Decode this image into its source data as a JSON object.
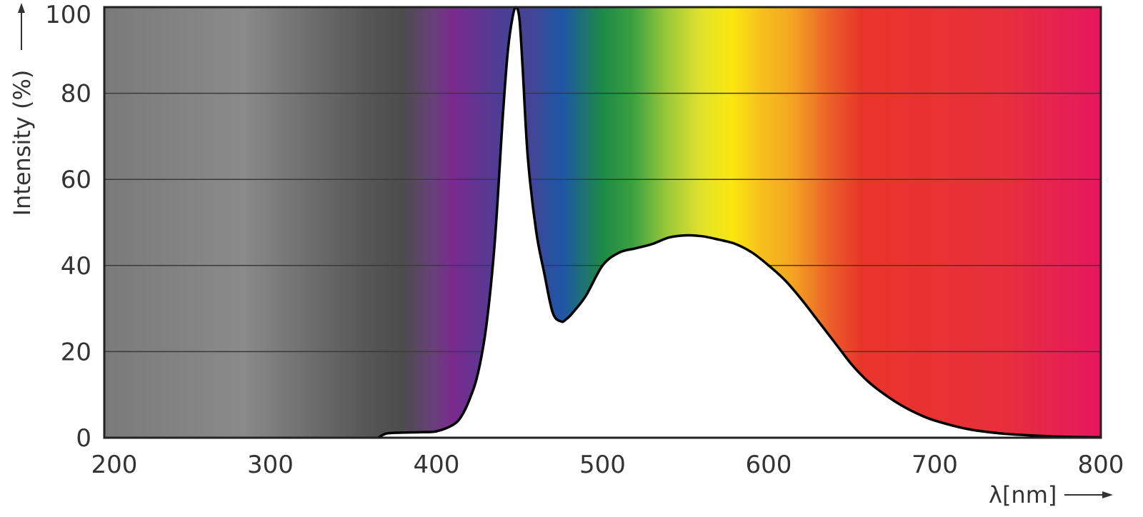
{
  "chart_data": {
    "type": "area",
    "title": "",
    "xlabel": "λ[nm]",
    "ylabel": "Intensity (%)",
    "xlim": [
      200,
      800
    ],
    "ylim": [
      0,
      100
    ],
    "x_ticks": [
      200,
      300,
      400,
      500,
      600,
      700,
      800
    ],
    "y_ticks": [
      0,
      20,
      40,
      60,
      80,
      100
    ],
    "grid": true,
    "legend": "none",
    "background": "visible-spectrum gradient (UV grey, violet, blue, green, yellow, orange, red)",
    "series": [
      {
        "x": [
          365,
          370,
          380,
          390,
          400,
          410,
          415,
          420,
          425,
          430,
          435,
          440,
          443,
          446,
          448,
          450,
          452,
          455,
          460,
          465,
          470,
          475,
          478,
          482,
          490,
          500,
          510,
          520,
          530,
          540,
          550,
          560,
          570,
          580,
          590,
          600,
          610,
          620,
          630,
          640,
          650,
          660,
          670,
          680,
          690,
          700,
          720,
          740,
          760,
          780,
          800
        ],
        "y": [
          0,
          1,
          1.2,
          1.3,
          1.5,
          3,
          5,
          9,
          15,
          26,
          45,
          75,
          90,
          98,
          100,
          97,
          85,
          65,
          48,
          38,
          29,
          27,
          27.5,
          29,
          33,
          40,
          43,
          44,
          45,
          46.5,
          47,
          46.8,
          46,
          45,
          43,
          40,
          36.5,
          32,
          27,
          22,
          17,
          13,
          10,
          7.5,
          5.5,
          4,
          2,
          1,
          0.5,
          0.2,
          0.1
        ]
      }
    ]
  },
  "colors": {
    "curve_stroke": "#000000",
    "curve_fill": "#ffffff",
    "grid_line": "#3a3a3a",
    "plot_border": "#222222",
    "uv_grey": "#7a7a7a",
    "violet": "#7a2a8e",
    "blue": "#434597",
    "deep_blue": "#1f56a6",
    "green": "#1d8a45",
    "yellow": "#fbe70f",
    "orange": "#f4a521",
    "red": "#e8342a",
    "magenta": "#e5175f"
  }
}
